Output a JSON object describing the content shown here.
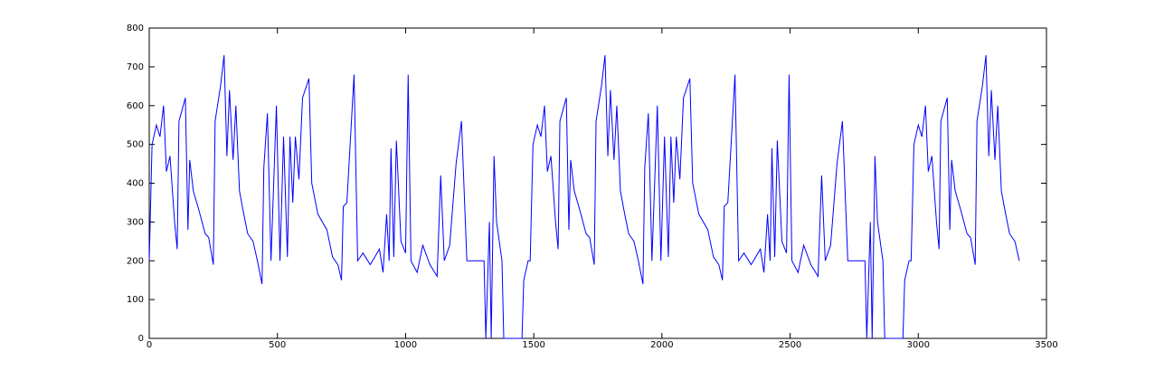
{
  "chart_data": {
    "type": "line",
    "x": [
      0,
      11,
      28,
      42,
      56,
      67,
      81,
      99,
      109,
      116,
      141,
      151,
      158,
      172,
      194,
      218,
      232,
      250,
      257,
      278,
      292,
      303,
      313,
      327,
      338,
      352,
      366,
      384,
      405,
      422,
      440,
      447,
      461,
      475,
      496,
      510,
      524,
      539,
      549,
      560,
      570,
      584,
      598,
      623,
      634,
      658,
      693,
      715,
      736,
      750,
      757,
      771,
      799,
      813,
      834,
      862,
      898,
      912,
      926,
      936,
      943,
      954,
      964,
      982,
      1000,
      1010,
      1021,
      1045,
      1067,
      1095,
      1123,
      1137,
      1151,
      1172,
      1197,
      1218,
      1239,
      1306,
      1313,
      1327,
      1334,
      1345,
      1355,
      1376,
      1383,
      1454,
      1461,
      1478,
      1486,
      1497,
      1514,
      1528,
      1542,
      1553,
      1567,
      1585,
      1595,
      1602,
      1627,
      1637,
      1644,
      1658,
      1680,
      1704,
      1718,
      1736,
      1743,
      1764,
      1778,
      1789,
      1799,
      1813,
      1824,
      1838,
      1852,
      1870,
      1891,
      1908,
      1926,
      1933,
      1947,
      1961,
      1982,
      1996,
      2010,
      2025,
      2035,
      2046,
      2056,
      2070,
      2084,
      2109,
      2120,
      2144,
      2179,
      2201,
      2222,
      2236,
      2243,
      2257,
      2285,
      2299,
      2320,
      2348,
      2384,
      2398,
      2412,
      2422,
      2429,
      2440,
      2450,
      2468,
      2486,
      2496,
      2507,
      2531,
      2553,
      2581,
      2609,
      2623,
      2637,
      2658,
      2683,
      2704,
      2725,
      2792,
      2799,
      2813,
      2820,
      2831,
      2841,
      2862,
      2869,
      2940,
      2947,
      2964,
      2972,
      2983,
      3000,
      3014,
      3028,
      3039,
      3053,
      3071,
      3081,
      3088,
      3113,
      3123,
      3130,
      3144,
      3166,
      3190,
      3204,
      3222,
      3229,
      3250,
      3264,
      3275,
      3285,
      3299,
      3310,
      3324,
      3338,
      3356,
      3377,
      3394
    ],
    "series": [
      {
        "color": "#0000ff",
        "values": [
          200,
          500,
          550,
          520,
          600,
          430,
          470,
          300,
          230,
          560,
          620,
          280,
          460,
          380,
          330,
          270,
          260,
          190,
          560,
          650,
          730,
          470,
          640,
          460,
          600,
          380,
          330,
          270,
          250,
          200,
          140,
          440,
          580,
          200,
          600,
          200,
          520,
          210,
          520,
          350,
          520,
          410,
          620,
          670,
          400,
          320,
          280,
          210,
          190,
          150,
          340,
          350,
          680,
          200,
          220,
          190,
          230,
          170,
          320,
          200,
          490,
          210,
          510,
          250,
          220,
          680,
          200,
          170,
          240,
          190,
          160,
          420,
          200,
          240,
          450,
          560,
          200,
          200,
          0,
          300,
          0,
          470,
          300,
          200,
          0,
          0,
          150,
          200,
          200,
          500,
          550,
          520,
          600,
          430,
          470,
          300,
          230,
          560,
          620,
          280,
          460,
          380,
          330,
          270,
          260,
          190,
          560,
          650,
          730,
          470,
          640,
          460,
          600,
          380,
          330,
          270,
          250,
          200,
          140,
          440,
          580,
          200,
          600,
          200,
          520,
          210,
          520,
          350,
          520,
          410,
          620,
          670,
          400,
          320,
          280,
          210,
          190,
          150,
          340,
          350,
          680,
          200,
          220,
          190,
          230,
          170,
          320,
          200,
          490,
          210,
          510,
          250,
          220,
          680,
          200,
          170,
          240,
          190,
          160,
          420,
          200,
          240,
          450,
          560,
          200,
          200,
          0,
          300,
          0,
          470,
          300,
          200,
          0,
          0,
          150,
          200,
          200,
          500,
          550,
          520,
          600,
          430,
          470,
          300,
          230,
          560,
          620,
          280,
          460,
          380,
          330,
          270,
          260,
          190,
          560,
          650,
          730,
          470,
          640,
          460,
          600,
          380,
          330,
          270,
          250,
          200
        ]
      }
    ],
    "xlim": [
      0,
      3500
    ],
    "xticks": [
      0,
      500,
      1000,
      1500,
      2000,
      2500,
      3000,
      3500
    ],
    "ylim": [
      0,
      800
    ],
    "yticks": [
      0,
      100,
      200,
      300,
      400,
      500,
      600,
      700,
      800
    ]
  }
}
